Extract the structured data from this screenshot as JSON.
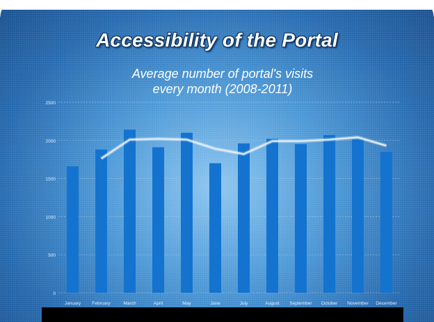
{
  "slide": {
    "title": "Accessibility of the Portal",
    "subtitle_line1": "Average number of portal's visits",
    "subtitle_line2": "every month (2008-2011)"
  },
  "colors": {
    "bar": "#1473cf",
    "trend_line": "#e6eef7",
    "grid": "#a9cbe9",
    "axis_text": "#e8f1fb"
  },
  "chart_data": {
    "type": "bar",
    "title": "Average number of portal's visits every month (2008-2011)",
    "categories": [
      "January",
      "February",
      "March",
      "April",
      "May",
      "June",
      "July",
      "August",
      "September",
      "October",
      "November",
      "December"
    ],
    "values": [
      1660,
      1880,
      2140,
      1910,
      2100,
      1700,
      1960,
      2020,
      1950,
      2070,
      2010,
      1850
    ],
    "ylim": [
      0,
      2500
    ],
    "yticks": [
      0,
      500,
      1000,
      1500,
      2000,
      2500
    ],
    "grid": true,
    "trend_line": {
      "type": "moving-average",
      "x_start_index": 1,
      "values": [
        1760,
        2010,
        2020,
        2010,
        1890,
        1820,
        1990,
        1990,
        2010,
        2040,
        1930
      ]
    }
  }
}
